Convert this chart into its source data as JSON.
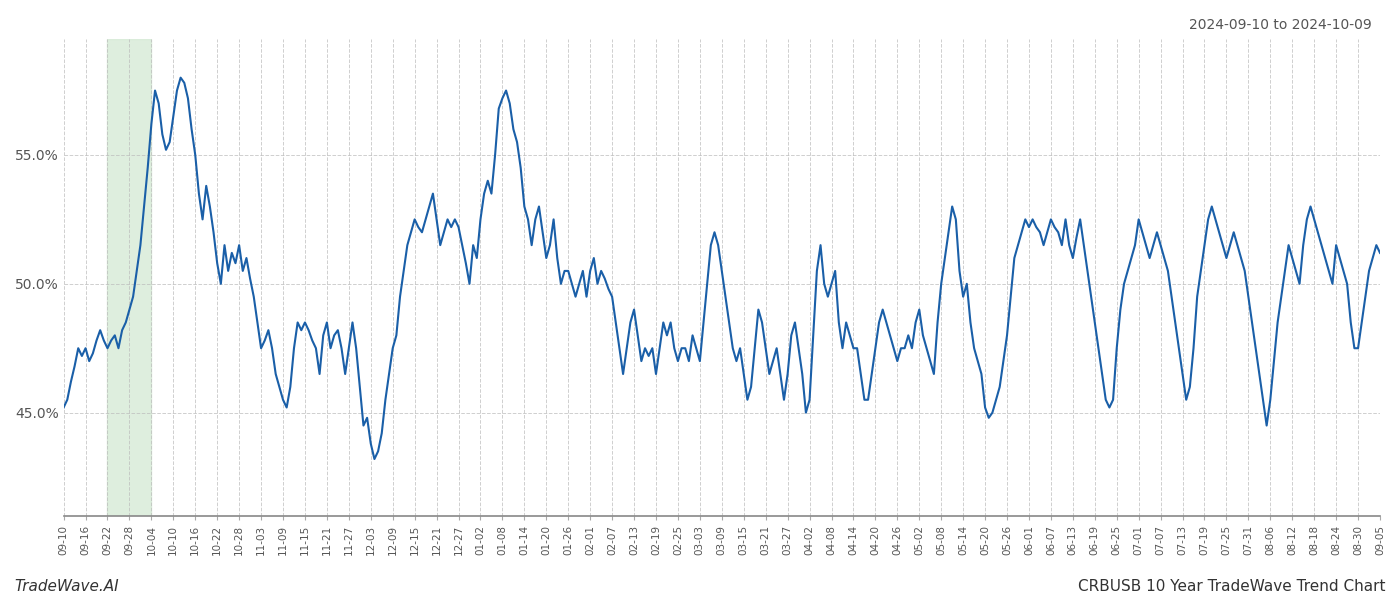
{
  "title_top_right": "2024-09-10 to 2024-10-09",
  "footer_left": "TradeWave.AI",
  "footer_right": "CRBUSB 10 Year TradeWave Trend Chart",
  "line_color": "#1a5fa8",
  "line_width": 1.5,
  "green_shade_color": "#d6ead6",
  "green_shade_alpha": 0.8,
  "green_shade_xstart": 2,
  "green_shade_xend": 4,
  "ylim": [
    41.0,
    59.5
  ],
  "yticks": [
    45.0,
    50.0,
    55.0
  ],
  "ytick_labels": [
    "45.0%",
    "50.0%",
    "55.0%"
  ],
  "background_color": "#ffffff",
  "grid_color": "#bbbbbb",
  "x_labels": [
    "09-10",
    "09-16",
    "09-22",
    "09-28",
    "10-04",
    "10-10",
    "10-16",
    "10-22",
    "10-28",
    "11-03",
    "11-09",
    "11-15",
    "11-21",
    "11-27",
    "12-03",
    "12-09",
    "12-15",
    "12-21",
    "12-27",
    "01-02",
    "01-08",
    "01-14",
    "01-20",
    "01-26",
    "02-01",
    "02-07",
    "02-13",
    "02-19",
    "02-25",
    "03-03",
    "03-09",
    "03-15",
    "03-21",
    "03-27",
    "04-02",
    "04-08",
    "04-14",
    "04-20",
    "04-26",
    "05-02",
    "05-08",
    "05-14",
    "05-20",
    "05-26",
    "06-01",
    "06-07",
    "06-13",
    "06-19",
    "06-25",
    "07-01",
    "07-07",
    "07-13",
    "07-19",
    "07-25",
    "07-31",
    "08-06",
    "08-12",
    "08-18",
    "08-24",
    "08-30",
    "09-05"
  ],
  "y_values": [
    45.2,
    45.5,
    46.2,
    46.8,
    47.5,
    47.2,
    47.5,
    47.0,
    47.3,
    47.8,
    48.2,
    47.8,
    47.5,
    47.8,
    48.0,
    47.5,
    48.2,
    48.5,
    49.0,
    49.5,
    50.5,
    51.5,
    53.0,
    54.5,
    56.2,
    57.5,
    57.0,
    55.8,
    55.2,
    55.5,
    56.5,
    57.5,
    58.0,
    57.8,
    57.2,
    56.0,
    55.0,
    53.5,
    52.5,
    53.8,
    53.0,
    52.0,
    50.8,
    50.0,
    51.5,
    50.5,
    51.2,
    50.8,
    51.5,
    50.5,
    51.0,
    50.2,
    49.5,
    48.5,
    47.5,
    47.8,
    48.2,
    47.5,
    46.5,
    46.0,
    45.5,
    45.2,
    46.0,
    47.5,
    48.5,
    48.2,
    48.5,
    48.2,
    47.8,
    47.5,
    46.5,
    48.0,
    48.5,
    47.5,
    48.0,
    48.2,
    47.5,
    46.5,
    47.5,
    48.5,
    47.5,
    46.0,
    44.5,
    44.8,
    43.8,
    43.2,
    43.5,
    44.2,
    45.5,
    46.5,
    47.5,
    48.0,
    49.5,
    50.5,
    51.5,
    52.0,
    52.5,
    52.2,
    52.0,
    52.5,
    53.0,
    53.5,
    52.5,
    51.5,
    52.0,
    52.5,
    52.2,
    52.5,
    52.2,
    51.5,
    50.8,
    50.0,
    51.5,
    51.0,
    52.5,
    53.5,
    54.0,
    53.5,
    55.0,
    56.8,
    57.2,
    57.5,
    57.0,
    56.0,
    55.5,
    54.5,
    53.0,
    52.5,
    51.5,
    52.5,
    53.0,
    52.0,
    51.0,
    51.5,
    52.5,
    51.0,
    50.0,
    50.5,
    50.5,
    50.0,
    49.5,
    50.0,
    50.5,
    49.5,
    50.5,
    51.0,
    50.0,
    50.5,
    50.2,
    49.8,
    49.5,
    48.5,
    47.5,
    46.5,
    47.5,
    48.5,
    49.0,
    48.0,
    47.0,
    47.5,
    47.2,
    47.5,
    46.5,
    47.5,
    48.5,
    48.0,
    48.5,
    47.5,
    47.0,
    47.5,
    47.5,
    47.0,
    48.0,
    47.5,
    47.0,
    48.5,
    50.0,
    51.5,
    52.0,
    51.5,
    50.5,
    49.5,
    48.5,
    47.5,
    47.0,
    47.5,
    46.5,
    45.5,
    46.0,
    47.5,
    49.0,
    48.5,
    47.5,
    46.5,
    47.0,
    47.5,
    46.5,
    45.5,
    46.5,
    48.0,
    48.5,
    47.5,
    46.5,
    45.0,
    45.5,
    48.0,
    50.5,
    51.5,
    50.0,
    49.5,
    50.0,
    50.5,
    48.5,
    47.5,
    48.5,
    48.0,
    47.5,
    47.5,
    46.5,
    45.5,
    45.5,
    46.5,
    47.5,
    48.5,
    49.0,
    48.5,
    48.0,
    47.5,
    47.0,
    47.5,
    47.5,
    48.0,
    47.5,
    48.5,
    49.0,
    48.0,
    47.5,
    47.0,
    46.5,
    48.5,
    50.0,
    51.0,
    52.0,
    53.0,
    52.5,
    50.5,
    49.5,
    50.0,
    48.5,
    47.5,
    47.0,
    46.5,
    45.2,
    44.8,
    45.0,
    45.5,
    46.0,
    47.0,
    48.0,
    49.5,
    51.0,
    51.5,
    52.0,
    52.5,
    52.2,
    52.5,
    52.2,
    52.0,
    51.5,
    52.0,
    52.5,
    52.2,
    52.0,
    51.5,
    52.5,
    51.5,
    51.0,
    51.8,
    52.5,
    51.5,
    50.5,
    49.5,
    48.5,
    47.5,
    46.5,
    45.5,
    45.2,
    45.5,
    47.5,
    49.0,
    50.0,
    50.5,
    51.0,
    51.5,
    52.5,
    52.0,
    51.5,
    51.0,
    51.5,
    52.0,
    51.5,
    51.0,
    50.5,
    49.5,
    48.5,
    47.5,
    46.5,
    45.5,
    46.0,
    47.5,
    49.5,
    50.5,
    51.5,
    52.5,
    53.0,
    52.5,
    52.0,
    51.5,
    51.0,
    51.5,
    52.0,
    51.5,
    51.0,
    50.5,
    49.5,
    48.5,
    47.5,
    46.5,
    45.5,
    44.5,
    45.5,
    47.0,
    48.5,
    49.5,
    50.5,
    51.5,
    51.0,
    50.5,
    50.0,
    51.5,
    52.5,
    53.0,
    52.5,
    52.0,
    51.5,
    51.0,
    50.5,
    50.0,
    51.5,
    51.0,
    50.5,
    50.0,
    48.5,
    47.5,
    47.5,
    48.5,
    49.5,
    50.5,
    51.0,
    51.5,
    51.2
  ]
}
